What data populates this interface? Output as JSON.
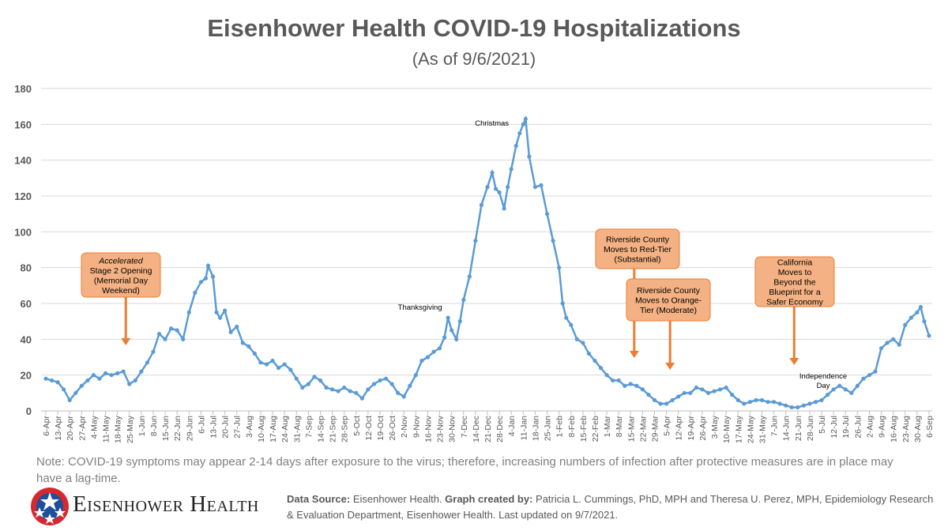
{
  "chart_data": {
    "type": "line",
    "title": "Eisenhower Health COVID-19 Hospitalizations",
    "subtitle": "(As of 9/6/2021)",
    "xlabel": "",
    "ylabel": "",
    "ylim": [
      0,
      180
    ],
    "yticks": [
      0,
      20,
      40,
      60,
      80,
      100,
      120,
      140,
      160,
      180
    ],
    "grid": true,
    "x_unit": "weeks since 6-Apr-2020",
    "categories": [
      "6-Apr",
      "13-Apr",
      "20-Apr",
      "27-Apr",
      "4-May",
      "11-May",
      "18-May",
      "25-May",
      "1-Jun",
      "8-Jun",
      "15-Jun",
      "22-Jun",
      "29-Jun",
      "6-Jul",
      "13-Jul",
      "20-Jul",
      "27-Jul",
      "3-Aug",
      "10-Aug",
      "17-Aug",
      "24-Aug",
      "31-Aug",
      "7-Sep",
      "14-Sep",
      "21-Sep",
      "28-Sep",
      "5-Oct",
      "12-Oct",
      "19-Oct",
      "26-Oct",
      "2-Nov",
      "9-Nov",
      "16-Nov",
      "23-Nov",
      "30-Nov",
      "7-Dec",
      "14-Dec",
      "21-Dec",
      "28-Dec",
      "4-Jan",
      "11-Jan",
      "18-Jan",
      "25-Jan",
      "1-Feb",
      "8-Feb",
      "15-Feb",
      "22-Feb",
      "1-Mar",
      "8-Mar",
      "15-Mar",
      "22-Mar",
      "29-Mar",
      "5-Apr",
      "12-Apr",
      "19-Apr",
      "26-Apr",
      "3-May",
      "10-May",
      "17-May",
      "24-May",
      "31-May",
      "7-Jun",
      "14-Jun",
      "21-Jun",
      "28-Jun",
      "5-Jul",
      "12-Jul",
      "19-Jul",
      "26-Jul",
      "2-Aug",
      "9-Aug",
      "16-Aug",
      "23-Aug",
      "30-Aug",
      "6-Sep"
    ],
    "series": [
      {
        "name": "Hospitalizations",
        "color": "#5B9BD5",
        "points": [
          [
            0,
            18
          ],
          [
            0.5,
            17
          ],
          [
            1,
            16
          ],
          [
            1.5,
            12
          ],
          [
            2,
            6
          ],
          [
            2.5,
            10
          ],
          [
            3,
            14
          ],
          [
            3.5,
            17
          ],
          [
            4,
            20
          ],
          [
            4.5,
            18
          ],
          [
            5,
            21
          ],
          [
            5.5,
            20
          ],
          [
            6,
            21
          ],
          [
            6.5,
            22
          ],
          [
            7,
            15
          ],
          [
            7.5,
            17
          ],
          [
            8,
            22
          ],
          [
            8.5,
            27
          ],
          [
            9,
            33
          ],
          [
            9.5,
            43
          ],
          [
            10,
            40
          ],
          [
            10.5,
            46
          ],
          [
            11,
            45
          ],
          [
            11.5,
            40
          ],
          [
            12,
            55
          ],
          [
            12.5,
            66
          ],
          [
            13,
            72
          ],
          [
            13.4,
            74
          ],
          [
            13.6,
            81
          ],
          [
            14,
            75
          ],
          [
            14.3,
            55
          ],
          [
            14.6,
            52
          ],
          [
            15,
            56
          ],
          [
            15.5,
            44
          ],
          [
            16,
            47
          ],
          [
            16.5,
            38
          ],
          [
            17,
            36
          ],
          [
            17.5,
            32
          ],
          [
            18,
            27
          ],
          [
            18.5,
            26
          ],
          [
            19,
            28
          ],
          [
            19.5,
            24
          ],
          [
            20,
            26
          ],
          [
            20.5,
            23
          ],
          [
            21,
            18
          ],
          [
            21.5,
            13
          ],
          [
            22,
            15
          ],
          [
            22.5,
            19
          ],
          [
            23,
            17
          ],
          [
            23.5,
            13
          ],
          [
            24,
            12
          ],
          [
            24.5,
            11
          ],
          [
            25,
            13
          ],
          [
            25.5,
            11
          ],
          [
            26,
            10
          ],
          [
            26.5,
            7
          ],
          [
            27,
            12
          ],
          [
            27.5,
            15
          ],
          [
            28,
            17
          ],
          [
            28.5,
            18
          ],
          [
            29,
            15
          ],
          [
            29.5,
            10
          ],
          [
            30,
            8
          ],
          [
            30.5,
            14
          ],
          [
            31,
            20
          ],
          [
            31.5,
            28
          ],
          [
            32,
            30
          ],
          [
            32.5,
            33
          ],
          [
            33,
            35
          ],
          [
            33.4,
            41
          ],
          [
            33.7,
            52
          ],
          [
            34,
            45
          ],
          [
            34.4,
            40
          ],
          [
            34.7,
            50
          ],
          [
            35,
            62
          ],
          [
            35.5,
            75
          ],
          [
            36,
            95
          ],
          [
            36.5,
            115
          ],
          [
            37,
            125
          ],
          [
            37.4,
            133
          ],
          [
            37.7,
            124
          ],
          [
            38,
            122
          ],
          [
            38.4,
            113
          ],
          [
            38.7,
            125
          ],
          [
            39,
            135
          ],
          [
            39.4,
            148
          ],
          [
            39.7,
            155
          ],
          [
            40,
            160
          ],
          [
            40.2,
            163
          ],
          [
            40.5,
            142
          ],
          [
            41,
            125
          ],
          [
            41.5,
            126
          ],
          [
            42,
            110
          ],
          [
            42.5,
            95
          ],
          [
            43,
            80
          ],
          [
            43.3,
            60
          ],
          [
            43.6,
            52
          ],
          [
            44,
            48
          ],
          [
            44.5,
            40
          ],
          [
            45,
            38
          ],
          [
            45.5,
            32
          ],
          [
            46,
            28
          ],
          [
            46.5,
            24
          ],
          [
            47,
            20
          ],
          [
            47.5,
            17
          ],
          [
            48,
            17
          ],
          [
            48.5,
            14
          ],
          [
            49,
            15
          ],
          [
            49.5,
            14
          ],
          [
            50,
            12
          ],
          [
            50.5,
            9
          ],
          [
            51,
            6
          ],
          [
            51.5,
            4
          ],
          [
            52,
            4
          ],
          [
            52.5,
            6
          ],
          [
            53,
            8
          ],
          [
            53.5,
            10
          ],
          [
            54,
            10
          ],
          [
            54.5,
            13
          ],
          [
            55,
            12
          ],
          [
            55.5,
            10
          ],
          [
            56,
            11
          ],
          [
            56.5,
            12
          ],
          [
            57,
            13
          ],
          [
            57.5,
            9
          ],
          [
            58,
            6
          ],
          [
            58.5,
            4
          ],
          [
            59,
            5
          ],
          [
            59.5,
            6
          ],
          [
            60,
            6
          ],
          [
            60.5,
            5
          ],
          [
            61,
            5
          ],
          [
            61.5,
            4
          ],
          [
            62,
            3
          ],
          [
            62.5,
            2
          ],
          [
            63,
            2
          ],
          [
            63.5,
            3
          ],
          [
            64,
            4
          ],
          [
            64.5,
            5
          ],
          [
            65,
            6
          ],
          [
            65.5,
            9
          ],
          [
            66,
            12
          ],
          [
            66.5,
            14
          ],
          [
            67,
            12
          ],
          [
            67.5,
            10
          ],
          [
            68,
            14
          ],
          [
            68.5,
            18
          ],
          [
            69,
            20
          ],
          [
            69.5,
            22
          ],
          [
            70,
            35
          ],
          [
            70.5,
            38
          ],
          [
            71,
            40
          ],
          [
            71.5,
            37
          ],
          [
            72,
            48
          ],
          [
            72.5,
            52
          ],
          [
            73,
            55
          ],
          [
            73.3,
            58
          ],
          [
            73.6,
            50
          ],
          [
            74,
            42
          ]
        ]
      }
    ],
    "annotations": [
      {
        "label": "Thanksgiving",
        "x": 33.6,
        "y": 53
      },
      {
        "label": "Christmas",
        "x": 38.7,
        "y": 135
      },
      {
        "label": "Independence",
        "label2": "Day",
        "x": 65,
        "y": 12
      }
    ],
    "callouts": [
      {
        "line1_italic": "Accelerated",
        "lines": [
          "Stage 2 Opening",
          "(Memorial Day",
          "Weekend)"
        ],
        "arrow_x": 6.7
      },
      {
        "lines": [
          "Riverside County",
          "Moves to Red-Tier",
          "(Substantial)"
        ],
        "arrow_x": 49.3
      },
      {
        "lines": [
          "Riverside County",
          "Moves to Orange-",
          "Tier (Moderate)"
        ],
        "arrow_x": 52.3
      },
      {
        "lines": [
          "California",
          "Moves to",
          "Beyond the",
          "Blueprint for a",
          "Safer Economy"
        ],
        "arrow_x": 62.7
      }
    ],
    "callout_fill": "#F4B183",
    "callout_border": "#ED7D31"
  },
  "note": "Note: COVID-19 symptoms may appear 2-14 days after exposure to the virus; therefore, increasing numbers of infection after protective measures are in place may have a lag-time.",
  "footer": {
    "brand": "Eisenhower Health",
    "source_label": "Data Source:",
    "source_text": " Eisenhower Health. ",
    "created_label": "Graph created by:",
    "created_text": " Patricia L. Cummings, PhD, MPH and Theresa U. Perez, MPH, Epidemiology Research & Evaluation Department, Eisenhower Health. Last updated on 9/7/2021."
  }
}
